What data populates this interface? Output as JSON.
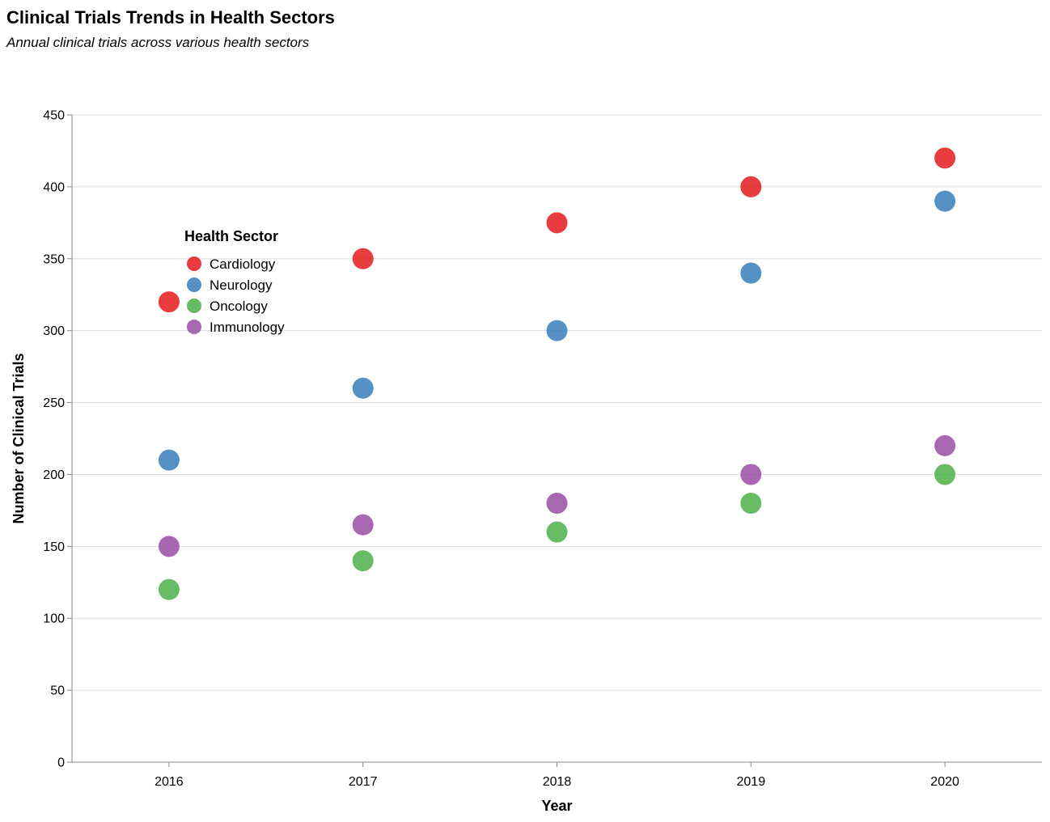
{
  "chart_data": {
    "type": "scatter",
    "title": "Clinical Trials Trends in Health Sectors",
    "subtitle": "Annual clinical trials across various health sectors",
    "xlabel": "Year",
    "ylabel": "Number of Clinical Trials",
    "x": [
      "2016",
      "2017",
      "2018",
      "2019",
      "2020"
    ],
    "ylim": [
      0,
      450
    ],
    "yticks": [
      0,
      50,
      100,
      150,
      200,
      250,
      300,
      350,
      400,
      450
    ],
    "grid": true,
    "legend": {
      "title": "Health Sector",
      "placement": "top-left"
    },
    "series": [
      {
        "name": "Cardiology",
        "color": "#e41a1c",
        "values": [
          320,
          350,
          375,
          400,
          420
        ]
      },
      {
        "name": "Neurology",
        "color": "#377eb8",
        "values": [
          210,
          260,
          300,
          340,
          390
        ]
      },
      {
        "name": "Oncology",
        "color": "#4daf4a",
        "values": [
          120,
          140,
          160,
          180,
          200
        ]
      },
      {
        "name": "Immunology",
        "color": "#984ea3",
        "values": [
          150,
          165,
          180,
          200,
          220
        ]
      }
    ]
  }
}
